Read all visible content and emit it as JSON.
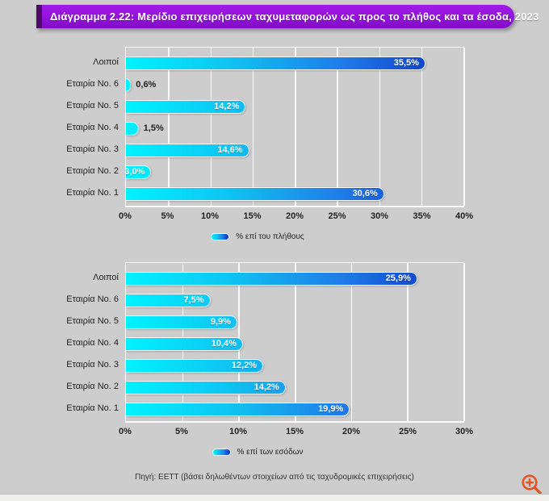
{
  "title": "Διάγραμμα 2.22: Μερίδιο επιχειρήσεων ταχυμεταφορών ως προς το πλήθος και τα έσοδα, 2023",
  "footer": "Πηγή: ΕΕΤΤ (βάσει δηλωθέντων στοιχείων από τις ταχυδρομικές επιχειρήσεις)",
  "colors": {
    "banner_purple": "#9313da",
    "banner_edge_dark": "#4d0a6b",
    "page_gray": "#cdcdcd",
    "bar_gradient_start": "#00f2ff",
    "bar_gradient_mid": "#1f7ae8",
    "bar_gradient_end": "#0a2dbb",
    "zoom_icon_orange": "#e35420",
    "grid_white": "#ffffff"
  },
  "zoom_icon": "zoom-in-magnifier",
  "chart_data": [
    {
      "type": "bar",
      "orientation": "horizontal",
      "title": "",
      "categories": [
        "Λοιποί",
        "Εταιρία No. 6",
        "Εταιρία No. 5",
        "Εταιρία No. 4",
        "Εταιρία No. 3",
        "Εταιρία No. 2",
        "Εταιρία No. 1"
      ],
      "values": [
        35.5,
        0.6,
        14.2,
        1.5,
        14.6,
        3.0,
        30.6
      ],
      "value_labels": [
        "35,5%",
        "0,6%",
        "14,2%",
        "1,5%",
        "14,6%",
        "3,0%",
        "30,6%"
      ],
      "label_inside": [
        true,
        false,
        true,
        false,
        true,
        true,
        true
      ],
      "xlim": [
        0,
        40
      ],
      "x_ticks": [
        "0%",
        "5%",
        "10%",
        "15%",
        "20%",
        "25%",
        "30%",
        "35%",
        "40%"
      ],
      "grid": true,
      "legend": "% επί του πλήθους",
      "legend_position": "bottom-center"
    },
    {
      "type": "bar",
      "orientation": "horizontal",
      "title": "",
      "categories": [
        "Λοιποί",
        "Εταιρία No. 6",
        "Εταιρία No. 5",
        "Εταιρία No. 4",
        "Εταιρία No. 3",
        "Εταιρία No. 2",
        "Εταιρία No. 1"
      ],
      "values": [
        25.9,
        7.5,
        9.9,
        10.4,
        12.2,
        14.2,
        19.9
      ],
      "value_labels": [
        "25,9%",
        "7,5%",
        "9,9%",
        "10,4%",
        "12,2%",
        "14,2%",
        "19,9%"
      ],
      "label_inside": [
        true,
        true,
        true,
        true,
        true,
        true,
        true
      ],
      "xlim": [
        0,
        30
      ],
      "x_ticks": [
        "0%",
        "5%",
        "10%",
        "15%",
        "20%",
        "25%",
        "30%"
      ],
      "grid": true,
      "legend": "% επί των εσόδων",
      "legend_position": "bottom-center"
    }
  ]
}
